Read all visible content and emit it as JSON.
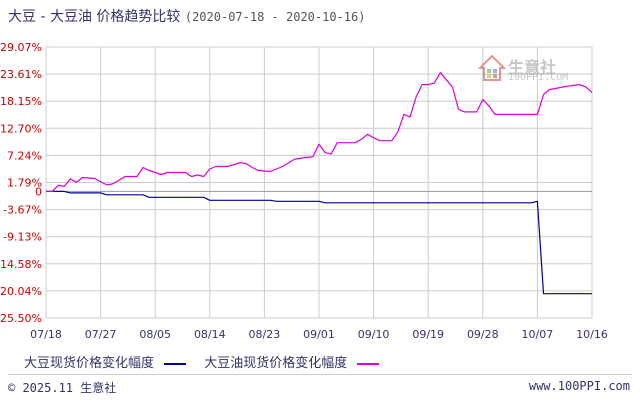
{
  "title": {
    "main": "大豆 - 大豆油 价格趋势比较",
    "range": "(2020-07-18 - 2020-10-16)"
  },
  "watermark": {
    "name": "生意社",
    "url": "100PPI.COM"
  },
  "footer": {
    "copyright": "© 2025.11 生意社",
    "site": "www.100PPI.com"
  },
  "colors": {
    "soybean": "#000099",
    "soybean_oil": "#dd00dd",
    "grid": "#cccccc",
    "zero_line": "#999999",
    "axis_text": "#333366"
  },
  "chart_data": {
    "type": "line",
    "title": "大豆 - 大豆油 价格趋势比较",
    "x_ticks": [
      "07/18",
      "07/27",
      "08/05",
      "08/14",
      "08/23",
      "09/01",
      "09/10",
      "09/19",
      "09/28",
      "10/07",
      "10/16"
    ],
    "y_ticks": [
      "29.07%",
      "23.61%",
      "18.15%",
      "12.70%",
      "7.24%",
      "1.79%",
      "-3.67%",
      "-9.13%",
      "-14.58%",
      "-20.04%",
      "-25.50%"
    ],
    "y_zero_label": "0",
    "ylim": [
      -25.5,
      29.07
    ],
    "x_range": [
      "2020-07-18",
      "2020-10-16"
    ],
    "grid": true,
    "legend_position": "bottom",
    "series": [
      {
        "name": "大豆现货价格变化幅度",
        "color": "#000099",
        "points": [
          [
            "2020-07-18",
            0
          ],
          [
            "2020-07-21",
            0
          ],
          [
            "2020-07-22",
            -0.3
          ],
          [
            "2020-07-27",
            -0.3
          ],
          [
            "2020-07-28",
            -0.7
          ],
          [
            "2020-08-03",
            -0.7
          ],
          [
            "2020-08-04",
            -1.2
          ],
          [
            "2020-08-13",
            -1.2
          ],
          [
            "2020-08-14",
            -1.8
          ],
          [
            "2020-08-24",
            -1.8
          ],
          [
            "2020-08-25",
            -2.0
          ],
          [
            "2020-09-01",
            -2.0
          ],
          [
            "2020-09-02",
            -2.3
          ],
          [
            "2020-10-06",
            -2.3
          ],
          [
            "2020-10-07",
            -2.0
          ],
          [
            "2020-10-08",
            -20.6
          ],
          [
            "2020-10-16",
            -20.6
          ]
        ]
      },
      {
        "name": "大豆油现货价格变化幅度",
        "color": "#dd00dd",
        "points": [
          [
            "2020-07-18",
            0
          ],
          [
            "2020-07-19",
            0
          ],
          [
            "2020-07-20",
            1.2
          ],
          [
            "2020-07-21",
            1.0
          ],
          [
            "2020-07-22",
            2.5
          ],
          [
            "2020-07-23",
            1.8
          ],
          [
            "2020-07-24",
            2.8
          ],
          [
            "2020-07-26",
            2.6
          ],
          [
            "2020-07-28",
            1.3
          ],
          [
            "2020-07-29",
            1.5
          ],
          [
            "2020-07-30",
            2.2
          ],
          [
            "2020-07-31",
            3.0
          ],
          [
            "2020-08-02",
            3.0
          ],
          [
            "2020-08-03",
            4.8
          ],
          [
            "2020-08-04",
            4.2
          ],
          [
            "2020-08-06",
            3.4
          ],
          [
            "2020-08-07",
            3.8
          ],
          [
            "2020-08-10",
            3.8
          ],
          [
            "2020-08-11",
            3.0
          ],
          [
            "2020-08-12",
            3.3
          ],
          [
            "2020-08-13",
            3.0
          ],
          [
            "2020-08-14",
            4.5
          ],
          [
            "2020-08-15",
            5.0
          ],
          [
            "2020-08-17",
            5.0
          ],
          [
            "2020-08-19",
            5.8
          ],
          [
            "2020-08-20",
            5.6
          ],
          [
            "2020-08-21",
            4.8
          ],
          [
            "2020-08-22",
            4.2
          ],
          [
            "2020-08-24",
            4.0
          ],
          [
            "2020-08-25",
            4.5
          ],
          [
            "2020-08-26",
            5.0
          ],
          [
            "2020-08-28",
            6.5
          ],
          [
            "2020-08-31",
            7.0
          ],
          [
            "2020-09-01",
            9.5
          ],
          [
            "2020-09-02",
            7.8
          ],
          [
            "2020-09-03",
            7.5
          ],
          [
            "2020-09-04",
            9.8
          ],
          [
            "2020-09-07",
            9.8
          ],
          [
            "2020-09-08",
            10.5
          ],
          [
            "2020-09-09",
            11.5
          ],
          [
            "2020-09-10",
            10.8
          ],
          [
            "2020-09-11",
            10.2
          ],
          [
            "2020-09-13",
            10.2
          ],
          [
            "2020-09-14",
            12.0
          ],
          [
            "2020-09-15",
            15.5
          ],
          [
            "2020-09-16",
            15.0
          ],
          [
            "2020-09-17",
            19.0
          ],
          [
            "2020-09-18",
            21.5
          ],
          [
            "2020-09-19",
            21.5
          ],
          [
            "2020-09-20",
            21.8
          ],
          [
            "2020-09-21",
            23.9
          ],
          [
            "2020-09-23",
            21.0
          ],
          [
            "2020-09-24",
            16.5
          ],
          [
            "2020-09-25",
            16.0
          ],
          [
            "2020-09-27",
            16.0
          ],
          [
            "2020-09-28",
            18.5
          ],
          [
            "2020-09-29",
            17.2
          ],
          [
            "2020-09-30",
            15.5
          ],
          [
            "2020-10-06",
            15.5
          ],
          [
            "2020-10-07",
            15.5
          ],
          [
            "2020-10-08",
            19.5
          ],
          [
            "2020-10-09",
            20.5
          ],
          [
            "2020-10-12",
            21.2
          ],
          [
            "2020-10-14",
            21.5
          ],
          [
            "2020-10-15",
            21.0
          ],
          [
            "2020-10-16",
            19.9
          ]
        ]
      }
    ]
  }
}
